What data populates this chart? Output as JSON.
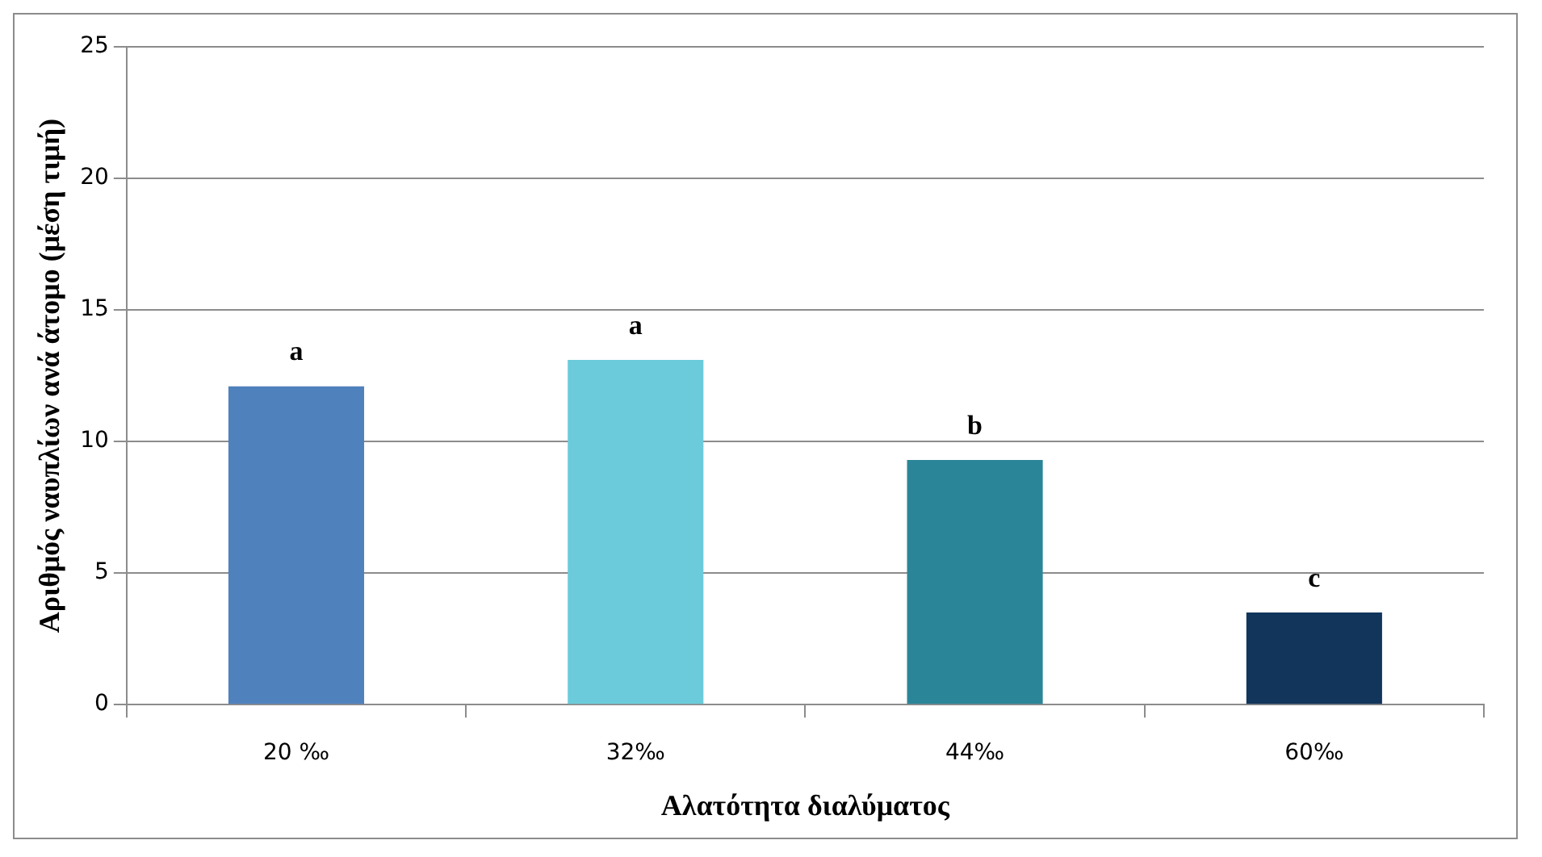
{
  "chart_data": {
    "type": "bar",
    "xlabel": "Αλατότητα διαλύματος",
    "ylabel": "Αριθμός ναυπλίων ανά άτομο (μέση τιμή)",
    "categories": [
      "20 ‰",
      "32‰",
      "44‰",
      "60‰"
    ],
    "values": [
      12.1,
      13.1,
      9.3,
      3.5
    ],
    "colors": [
      "#4f81bd",
      "#6bcbdb",
      "#2b8599",
      "#12355b"
    ],
    "ylim": [
      0,
      25
    ],
    "yticks": [
      0,
      5,
      10,
      15,
      20,
      25
    ],
    "grid": "y",
    "legend": false,
    "annotations": [
      {
        "text": "a",
        "x": "20 ‰",
        "y": 12.1
      },
      {
        "text": "a",
        "x": "32‰",
        "y": 13.1
      },
      {
        "text": "b",
        "x": "44‰",
        "y": 9.3
      },
      {
        "text": "c",
        "x": "60‰",
        "y": 3.5
      }
    ]
  }
}
